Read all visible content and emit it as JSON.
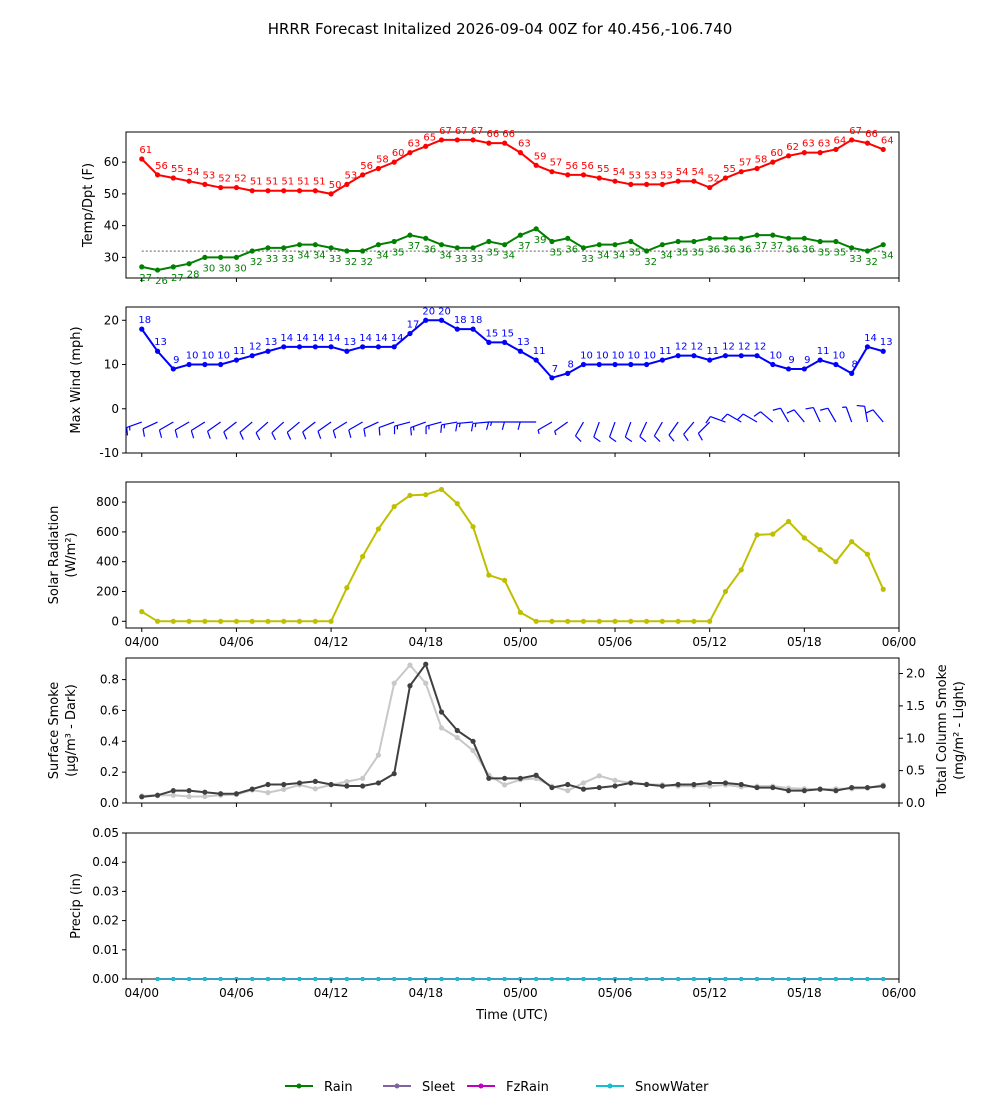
{
  "title": "HRRR Forecast Initalized 2026-09-04 00Z for 40.456,-106.740",
  "x_tick_labels": [
    "04/00",
    "04/06",
    "04/12",
    "04/18",
    "05/00",
    "05/06",
    "05/12",
    "05/18",
    "06/00"
  ],
  "x_axis_label": "Time (UTC)",
  "colors": {
    "temp": "#ff0000",
    "dewpoint": "#008000",
    "wind": "#0000ff",
    "solar": "#bfbf00",
    "smoke_dark": "#404040",
    "smoke_light": "#c8c8c8",
    "rain": "#008000",
    "sleet": "#8064a2",
    "fzrain": "#c000c0",
    "snowwater": "#17becf"
  },
  "legend": [
    {
      "label": "Rain",
      "color": "#008000"
    },
    {
      "label": "Sleet",
      "color": "#8064a2"
    },
    {
      "label": "FzRain",
      "color": "#c000c0"
    },
    {
      "label": "SnowWater",
      "color": "#17becf"
    }
  ],
  "chart_data": [
    {
      "type": "line",
      "ylabel": "Temp/Dpt (F)",
      "x": [
        1,
        2,
        3,
        4,
        5,
        6,
        7,
        8,
        9,
        10,
        11,
        12,
        13,
        14,
        15,
        16,
        17,
        18,
        19,
        20,
        21,
        22,
        23,
        24,
        25,
        26,
        27,
        28,
        29,
        30,
        31,
        32,
        33,
        34,
        35,
        36,
        37,
        38,
        39,
        40,
        41,
        42,
        43,
        44,
        45,
        46,
        47,
        48
      ],
      "yticks": [
        30,
        40,
        50,
        60
      ],
      "ylim": [
        23.5,
        69.5
      ],
      "reference_line": 32,
      "series": [
        {
          "values": [
            61,
            56,
            55,
            54,
            53,
            52,
            52,
            51,
            51,
            51,
            51,
            51,
            50,
            53,
            56,
            58,
            60,
            63,
            65,
            67,
            67,
            67,
            66,
            66,
            63,
            59,
            57,
            56,
            56,
            55,
            54,
            53,
            53,
            53,
            54,
            54,
            52,
            55,
            57,
            58,
            60,
            62,
            63,
            63,
            64,
            67,
            66,
            64
          ]
        },
        {
          "values": [
            27,
            26,
            27,
            28,
            30,
            30,
            30,
            32,
            33,
            33,
            34,
            34,
            33,
            32,
            32,
            34,
            35,
            37,
            36,
            34,
            33,
            33,
            35,
            34,
            37,
            39,
            35,
            36,
            33,
            34,
            34,
            35,
            32,
            34,
            35,
            35,
            36,
            36,
            36,
            37,
            37,
            36,
            36,
            35,
            35,
            33,
            32,
            34
          ]
        }
      ]
    },
    {
      "type": "line",
      "ylabel": "Max Wind (mph)",
      "x": [
        1,
        2,
        3,
        4,
        5,
        6,
        7,
        8,
        9,
        10,
        11,
        12,
        13,
        14,
        15,
        16,
        17,
        18,
        19,
        20,
        21,
        22,
        23,
        24,
        25,
        26,
        27,
        28,
        29,
        30,
        31,
        32,
        33,
        34,
        35,
        36,
        37,
        38,
        39,
        40,
        41,
        42,
        43,
        44,
        45,
        46,
        47,
        48
      ],
      "yticks": [
        -10,
        0,
        10,
        20
      ],
      "ylim": [
        -10,
        23
      ],
      "series": [
        {
          "values": [
            18,
            13,
            9,
            10,
            10,
            10,
            11,
            12,
            13,
            14,
            14,
            14,
            14,
            13,
            14,
            14,
            14,
            17,
            20,
            20,
            18,
            18,
            15,
            15,
            13,
            11,
            7,
            8,
            10,
            10,
            10,
            10,
            10,
            11,
            12,
            12,
            11,
            12,
            12,
            12,
            10,
            9,
            9,
            11,
            10,
            8,
            14,
            13
          ]
        }
      ]
    },
    {
      "type": "line",
      "ylabel": "Solar Radiation",
      "ylabel_units": "(W/m²)",
      "x": [
        1,
        2,
        3,
        4,
        5,
        6,
        7,
        8,
        9,
        10,
        11,
        12,
        13,
        14,
        15,
        16,
        17,
        18,
        19,
        20,
        21,
        22,
        23,
        24,
        25,
        26,
        27,
        28,
        29,
        30,
        31,
        32,
        33,
        34,
        35,
        36,
        37,
        38,
        39,
        40,
        41,
        42,
        43,
        44,
        45,
        46,
        47,
        48
      ],
      "yticks": [
        0,
        200,
        400,
        600,
        800
      ],
      "ylim": [
        -45,
        935
      ],
      "series": [
        {
          "values": [
            65,
            0,
            0,
            0,
            0,
            0,
            0,
            0,
            0,
            0,
            0,
            0,
            0,
            225,
            435,
            620,
            770,
            845,
            850,
            885,
            790,
            635,
            310,
            275,
            60,
            0,
            0,
            0,
            0,
            0,
            0,
            0,
            0,
            0,
            0,
            0,
            0,
            200,
            345,
            580,
            585,
            670,
            560,
            480,
            400,
            535,
            450,
            215
          ]
        }
      ]
    },
    {
      "type": "line",
      "ylabel": "Surface Smoke",
      "ylabel_units": "(μg/m³ - Dark)",
      "y2label": "Total Column Smoke",
      "y2label_units": "(mg/m² - Light)",
      "x": [
        1,
        2,
        3,
        4,
        5,
        6,
        7,
        8,
        9,
        10,
        11,
        12,
        13,
        14,
        15,
        16,
        17,
        18,
        19,
        20,
        21,
        22,
        23,
        24,
        25,
        26,
        27,
        28,
        29,
        30,
        31,
        32,
        33,
        34,
        35,
        36,
        37,
        38,
        39,
        40,
        41,
        42,
        43,
        44,
        45,
        46,
        47,
        48
      ],
      "yticks": [
        "0.0",
        "0.2",
        "0.4",
        "0.6",
        "0.8"
      ],
      "ylim": [
        0,
        0.94
      ],
      "y2ticks": [
        "0.0",
        "0.5",
        "1.0",
        "1.5",
        "2.0"
      ],
      "y2lim": [
        0,
        2.24
      ],
      "series": [
        {
          "values": [
            0.04,
            0.05,
            0.08,
            0.08,
            0.07,
            0.06,
            0.06,
            0.09,
            0.12,
            0.12,
            0.13,
            0.14,
            0.12,
            0.11,
            0.11,
            0.13,
            0.19,
            0.76,
            0.9,
            0.59,
            0.47,
            0.4,
            0.16,
            0.16,
            0.16,
            0.18,
            0.1,
            0.12,
            0.09,
            0.1,
            0.11,
            0.13,
            0.12,
            0.11,
            0.12,
            0.12,
            0.13,
            0.13,
            0.12,
            0.1,
            0.1,
            0.08,
            0.08,
            0.09,
            0.08,
            0.1,
            0.1,
            0.11
          ]
        },
        {
          "values": [
            0.11,
            0.12,
            0.12,
            0.1,
            0.1,
            0.12,
            0.13,
            0.2,
            0.16,
            0.21,
            0.28,
            0.22,
            0.28,
            0.33,
            0.38,
            0.74,
            1.85,
            2.13,
            1.85,
            1.16,
            1.01,
            0.81,
            0.43,
            0.28,
            0.36,
            0.38,
            0.26,
            0.19,
            0.31,
            0.42,
            0.35,
            0.31,
            0.29,
            0.28,
            0.26,
            0.26,
            0.26,
            0.28,
            0.25,
            0.26,
            0.26,
            0.23,
            0.22,
            0.21,
            0.22,
            0.22,
            0.23,
            0.28
          ]
        }
      ]
    },
    {
      "type": "line",
      "ylabel": "Precip (in)",
      "x": [
        2,
        3,
        4,
        5,
        6,
        7,
        8,
        9,
        10,
        11,
        12,
        13,
        14,
        15,
        16,
        17,
        18,
        19,
        20,
        21,
        22,
        23,
        24,
        25,
        26,
        27,
        28,
        29,
        30,
        31,
        32,
        33,
        34,
        35,
        36,
        37,
        38,
        39,
        40,
        41,
        42,
        43,
        44,
        45,
        46,
        47,
        48
      ],
      "yticks": [
        "0.00",
        "0.01",
        "0.02",
        "0.03",
        "0.04",
        "0.05"
      ],
      "ylim": [
        0,
        0.05
      ],
      "series": [
        {
          "name": "Rain",
          "values": [
            0,
            0,
            0,
            0,
            0,
            0,
            0,
            0,
            0,
            0,
            0,
            0,
            0,
            0,
            0,
            0,
            0,
            0,
            0,
            0,
            0,
            0,
            0,
            0,
            0,
            0,
            0,
            0,
            0,
            0,
            0,
            0,
            0,
            0,
            0,
            0,
            0,
            0,
            0,
            0,
            0,
            0,
            0,
            0,
            0,
            0,
            0
          ]
        },
        {
          "name": "Sleet",
          "values": [
            0,
            0,
            0,
            0,
            0,
            0,
            0,
            0,
            0,
            0,
            0,
            0,
            0,
            0,
            0,
            0,
            0,
            0,
            0,
            0,
            0,
            0,
            0,
            0,
            0,
            0,
            0,
            0,
            0,
            0,
            0,
            0,
            0,
            0,
            0,
            0,
            0,
            0,
            0,
            0,
            0,
            0,
            0,
            0,
            0,
            0,
            0
          ]
        },
        {
          "name": "FzRain",
          "values": [
            0,
            0,
            0,
            0,
            0,
            0,
            0,
            0,
            0,
            0,
            0,
            0,
            0,
            0,
            0,
            0,
            0,
            0,
            0,
            0,
            0,
            0,
            0,
            0,
            0,
            0,
            0,
            0,
            0,
            0,
            0,
            0,
            0,
            0,
            0,
            0,
            0,
            0,
            0,
            0,
            0,
            0,
            0,
            0,
            0,
            0,
            0
          ]
        },
        {
          "name": "SnowWater",
          "values": [
            0,
            0,
            0,
            0,
            0,
            0,
            0,
            0,
            0,
            0,
            0,
            0,
            0,
            0,
            0,
            0,
            0,
            0,
            0,
            0,
            0,
            0,
            0,
            0,
            0,
            0,
            0,
            0,
            0,
            0,
            0,
            0,
            0,
            0,
            0,
            0,
            0,
            0,
            0,
            0,
            0,
            0,
            0,
            0,
            0,
            0,
            0
          ]
        }
      ]
    }
  ],
  "wind_barbs": {
    "directions_deg": [
      250,
      245,
      240,
      240,
      238,
      235,
      232,
      230,
      228,
      228,
      230,
      232,
      235,
      238,
      240,
      245,
      250,
      255,
      250,
      255,
      260,
      265,
      265,
      270,
      270,
      270,
      240,
      235,
      210,
      200,
      200,
      200,
      205,
      210,
      215,
      220,
      225,
      290,
      300,
      300,
      310,
      330,
      320,
      335,
      330,
      340,
      350,
      320
    ],
    "speeds_mph": [
      18,
      13,
      9,
      10,
      10,
      10,
      11,
      12,
      13,
      14,
      14,
      14,
      14,
      13,
      14,
      14,
      14,
      17,
      20,
      20,
      18,
      18,
      15,
      15,
      13,
      11,
      7,
      8,
      10,
      10,
      10,
      10,
      10,
      11,
      12,
      12,
      11,
      12,
      12,
      12,
      10,
      9,
      9,
      11,
      10,
      8,
      14,
      13
    ]
  }
}
